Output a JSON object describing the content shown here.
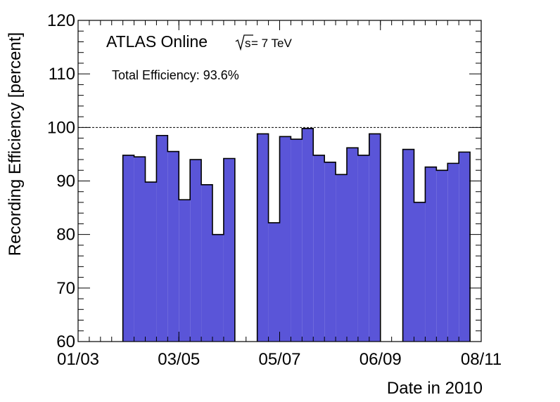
{
  "chart_data": {
    "type": "bar",
    "title": "",
    "xlabel": "Date in 2010",
    "ylabel": "Recording Efficiency [percent]",
    "ylim": [
      60,
      120
    ],
    "y_ticks": [
      "60",
      "70",
      "80",
      "90",
      "100",
      "110",
      "120"
    ],
    "x_tick_labels": [
      "01/03",
      "03/05",
      "05/07",
      "06/09",
      "08/11"
    ],
    "x_tick_dates": [
      "2010-03-01",
      "2010-05-03",
      "2010-07-05",
      "2010-09-06",
      "2010-11-08"
    ],
    "x_range": [
      "2010-03-01",
      "2010-11-08"
    ],
    "reference_line": 100,
    "grid": false,
    "bar_color": "#5a55d8",
    "annotation_main": "ATLAS Online",
    "annotation_energy_sqrt": "s",
    "annotation_energy_rest": " = 7 TeV",
    "annotation_total": "Total Efficiency: 93.6%",
    "weeks": [
      "2010-03-29",
      "2010-04-05",
      "2010-04-12",
      "2010-04-19",
      "2010-04-26",
      "2010-05-03",
      "2010-05-10",
      "2010-05-17",
      "2010-05-24",
      "2010-05-31",
      "2010-06-07",
      "2010-06-14",
      "2010-06-21",
      "2010-06-28",
      "2010-07-05",
      "2010-07-12",
      "2010-07-19",
      "2010-07-26",
      "2010-08-02",
      "2010-08-09",
      "2010-08-16",
      "2010-08-23",
      "2010-08-30",
      "2010-09-06",
      "2010-09-13",
      "2010-09-20",
      "2010-09-27",
      "2010-10-04",
      "2010-10-11",
      "2010-10-18",
      "2010-10-25",
      "2010-11-01"
    ],
    "values": [
      94.8,
      94.5,
      89.8,
      98.5,
      95.5,
      86.5,
      94.0,
      89.3,
      80.0,
      94.2,
      null,
      null,
      98.8,
      82.2,
      98.3,
      97.8,
      99.8,
      94.8,
      93.5,
      91.2,
      96.2,
      94.8,
      98.8,
      null,
      null,
      95.9,
      86.0,
      92.6,
      92.0,
      93.3,
      95.4,
      null
    ]
  }
}
